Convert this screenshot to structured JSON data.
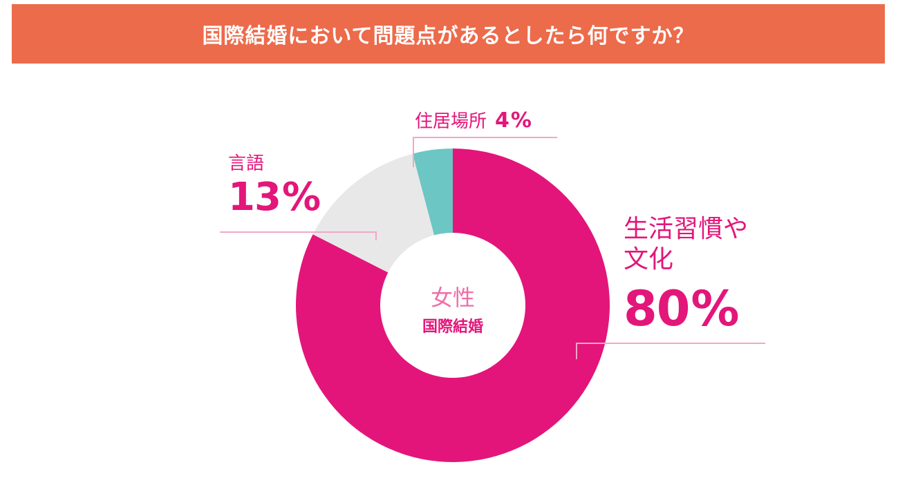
{
  "header": {
    "title": "国際結婚において問題点があるとしたら何ですか？",
    "background_color": "#ec6b4b"
  },
  "center": {
    "line1": "女性",
    "line2": "国際結婚"
  },
  "chart_data": {
    "type": "pie",
    "donut": true,
    "slices": [
      {
        "label_lines": [
          "生活習慣や",
          "文化"
        ],
        "value": 80,
        "value_label": "80",
        "unit": "%",
        "color": "#e3157a"
      },
      {
        "label_lines": [
          "言語"
        ],
        "value": 13,
        "value_label": "13",
        "unit": "%",
        "color": "#e8e8e8"
      },
      {
        "label_lines": [
          "住居場所"
        ],
        "value": 4,
        "value_label": "4",
        "unit": "%",
        "color": "#6cc6c3"
      }
    ],
    "label_color": "#e3167a",
    "leader_line_color": "#f3a6c8",
    "center_top_color": "#f06ea8"
  }
}
